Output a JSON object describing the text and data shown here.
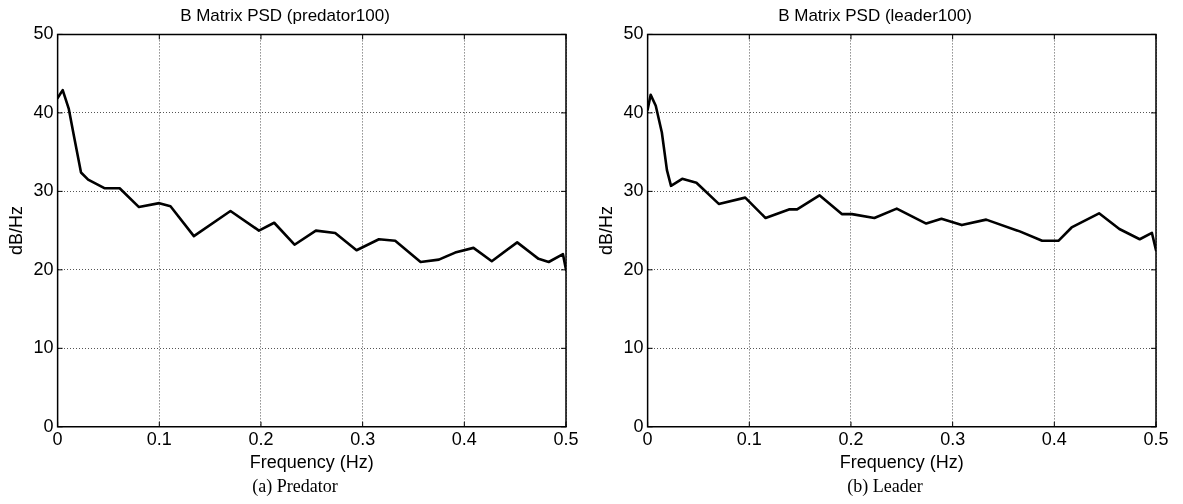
{
  "chart_data": [
    {
      "type": "line",
      "title": "B Matrix PSD (predator100)",
      "xlabel": "Frequency (Hz)",
      "ylabel": "dB/Hz",
      "annotations": [
        "(a) Predator"
      ],
      "xlim": [
        0,
        0.5
      ],
      "ylim": [
        0,
        50
      ],
      "xticks": [
        0,
        0.1,
        0.2,
        0.3,
        0.4,
        0.5
      ],
      "yticks": [
        0,
        10,
        20,
        30,
        40,
        50
      ],
      "grid": true,
      "legend": false,
      "marker": "none",
      "line_style": "solid",
      "series": [
        {
          "color": "#000000",
          "x": [
            0,
            0.005,
            0.011,
            0.016,
            0.023,
            0.03,
            0.046,
            0.061,
            0.08,
            0.1,
            0.111,
            0.134,
            0.17,
            0.198,
            0.213,
            0.233,
            0.254,
            0.273,
            0.294,
            0.316,
            0.332,
            0.357,
            0.375,
            0.391,
            0.409,
            0.427,
            0.452,
            0.473,
            0.483,
            0.497,
            0.5
          ],
          "values": [
            41.9,
            42.9,
            40.5,
            37.1,
            32.4,
            31.5,
            30.4,
            30.4,
            28,
            28.5,
            28.1,
            24.3,
            27.5,
            25,
            26,
            23.2,
            25,
            24.7,
            22.5,
            23.9,
            23.7,
            21,
            21.3,
            22.2,
            22.8,
            21.1,
            23.5,
            21.4,
            21,
            22,
            20
          ]
        }
      ]
    },
    {
      "type": "line",
      "title": "B Matrix PSD (leader100)",
      "xlabel": "Frequency (Hz)",
      "ylabel": "dB/Hz",
      "annotations": [
        "(b) Leader"
      ],
      "xlim": [
        0,
        0.5
      ],
      "ylim": [
        0,
        50
      ],
      "xticks": [
        0,
        0.1,
        0.2,
        0.3,
        0.4,
        0.5
      ],
      "yticks": [
        0,
        10,
        20,
        30,
        40,
        50
      ],
      "grid": true,
      "legend": false,
      "marker": "none",
      "line_style": "solid",
      "series": [
        {
          "color": "#000000",
          "x": [
            0,
            0.003,
            0.008,
            0.014,
            0.019,
            0.023,
            0.034,
            0.048,
            0.07,
            0.096,
            0.116,
            0.139,
            0.147,
            0.169,
            0.191,
            0.201,
            0.223,
            0.245,
            0.274,
            0.289,
            0.309,
            0.333,
            0.366,
            0.388,
            0.404,
            0.417,
            0.444,
            0.464,
            0.484,
            0.496,
            0.5
          ],
          "values": [
            40.4,
            42.3,
            40.9,
            37.5,
            32.7,
            30.7,
            31.6,
            31.1,
            28.4,
            29.2,
            26.6,
            27.7,
            27.7,
            29.5,
            27.1,
            27.1,
            26.6,
            27.8,
            25.9,
            26.5,
            25.7,
            26.4,
            24.9,
            23.7,
            23.7,
            25.4,
            27.2,
            25.2,
            23.9,
            24.7,
            22.5
          ]
        }
      ]
    }
  ]
}
